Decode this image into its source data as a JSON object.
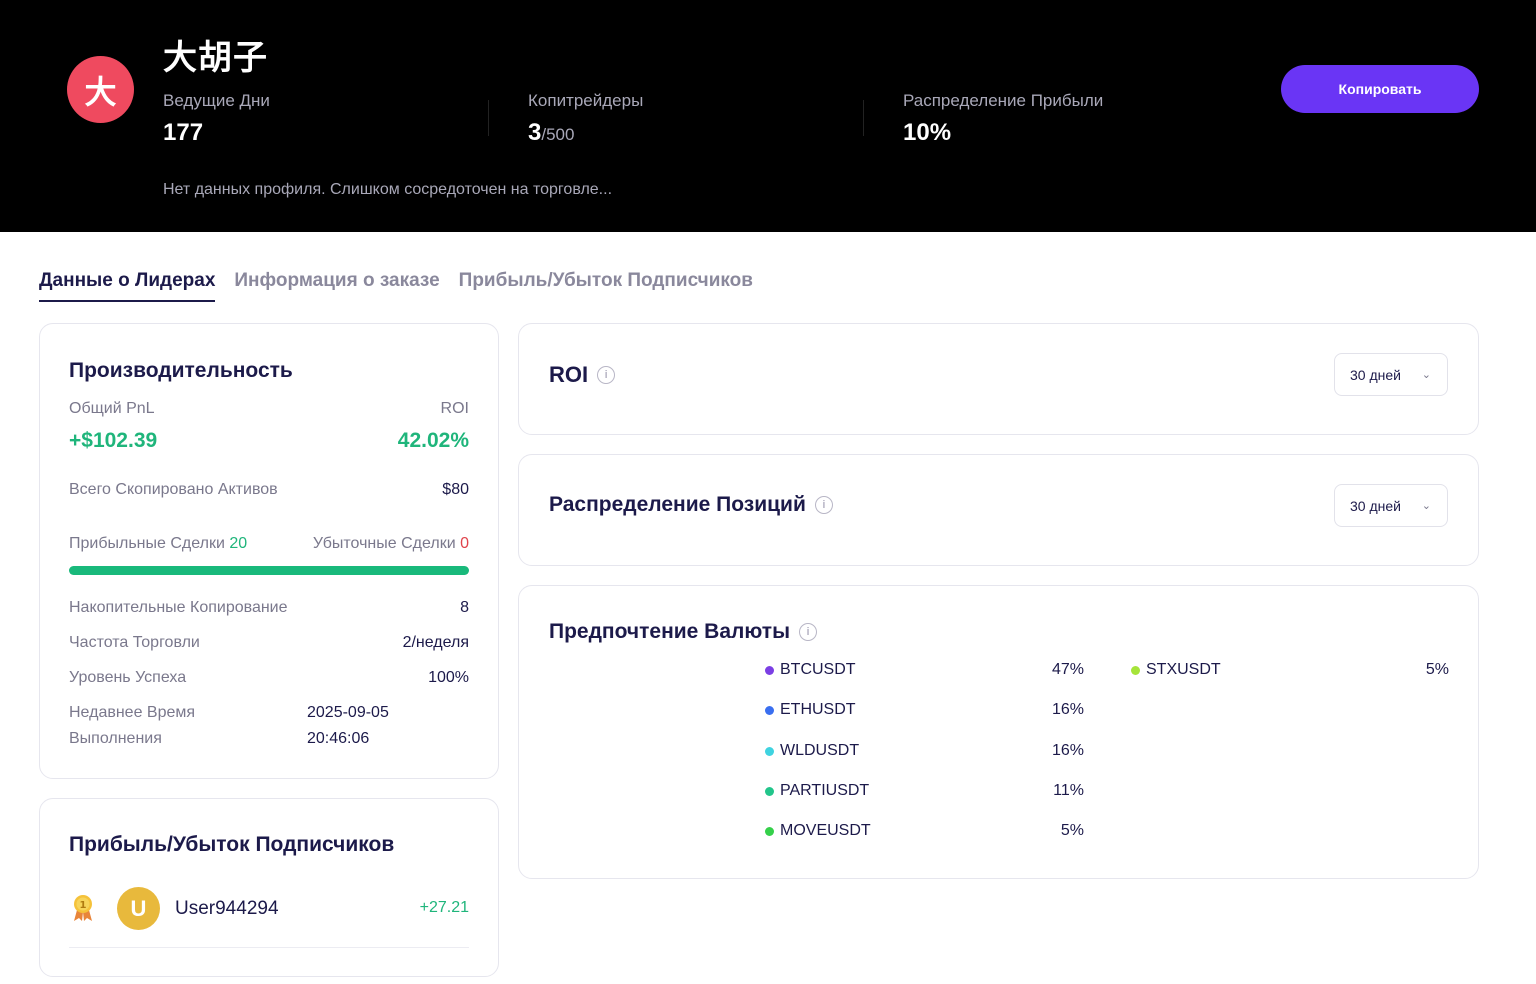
{
  "header": {
    "avatar_letter": "大",
    "name": "大胡子",
    "stats": [
      {
        "label": "Ведущие Дни",
        "value": "177",
        "suffix": ""
      },
      {
        "label": "Копитрейдеры",
        "value": "3",
        "suffix": "/500"
      },
      {
        "label": "Распределение Прибыли",
        "value": "10%",
        "suffix": ""
      }
    ],
    "bio": "Нет данных профиля. Слишком сосредоточен на торговле...",
    "copy_button": "Копировать"
  },
  "tabs": [
    "Данные о Лидерах",
    "Информация о заказе",
    "Прибыль/Убыток Подписчиков"
  ],
  "performance": {
    "title": "Производительность",
    "pnl_label": "Общий PnL",
    "roi_label": "ROI",
    "pnl_value": "+$102.39",
    "roi_value": "42.02%",
    "copied_assets_label": "Всего Скопировано Активов",
    "copied_assets_value": "$80",
    "win_label": "Прибыльные Сделки",
    "win_value": "20",
    "loss_label": "Убыточные Сделки",
    "loss_value": "0",
    "win_ratio": 1.0,
    "cumulative_label": "Накопительные Копирование",
    "cumulative_value": "8",
    "frequency_label": "Частота Торговли",
    "frequency_value": "2/неделя",
    "success_label": "Уровень Успеха",
    "success_value": "100%",
    "recent_label_1": "Недавнее Время",
    "recent_label_2": "Выполнения",
    "recent_date": "2025-09-05",
    "recent_time": "20:46:06"
  },
  "subscribers": {
    "title": "Прибыль/Убыток Подписчиков",
    "items": [
      {
        "avatar": "U",
        "user": "User944294",
        "pnl": "+27.21",
        "medal_icon": "gold-medal-icon"
      }
    ]
  },
  "roi_card": {
    "title": "ROI",
    "period": "30 дней"
  },
  "position_card": {
    "title": "Распределение Позиций",
    "period": "30 дней"
  },
  "currency_card": {
    "title": "Предпочтение Валюты",
    "coins": [
      {
        "name": "BTCUSDT",
        "pct": "47%",
        "color": "#7b3fe4"
      },
      {
        "name": "ETHUSDT",
        "pct": "16%",
        "color": "#3a6ff0"
      },
      {
        "name": "WLDUSDT",
        "pct": "16%",
        "color": "#3fd3e0"
      },
      {
        "name": "PARTIUSDT",
        "pct": "11%",
        "color": "#22c58b"
      },
      {
        "name": "MOVEUSDT",
        "pct": "5%",
        "color": "#35d04a"
      },
      {
        "name": "STXUSDT",
        "pct": "5%",
        "color": "#a6e43a"
      }
    ]
  }
}
